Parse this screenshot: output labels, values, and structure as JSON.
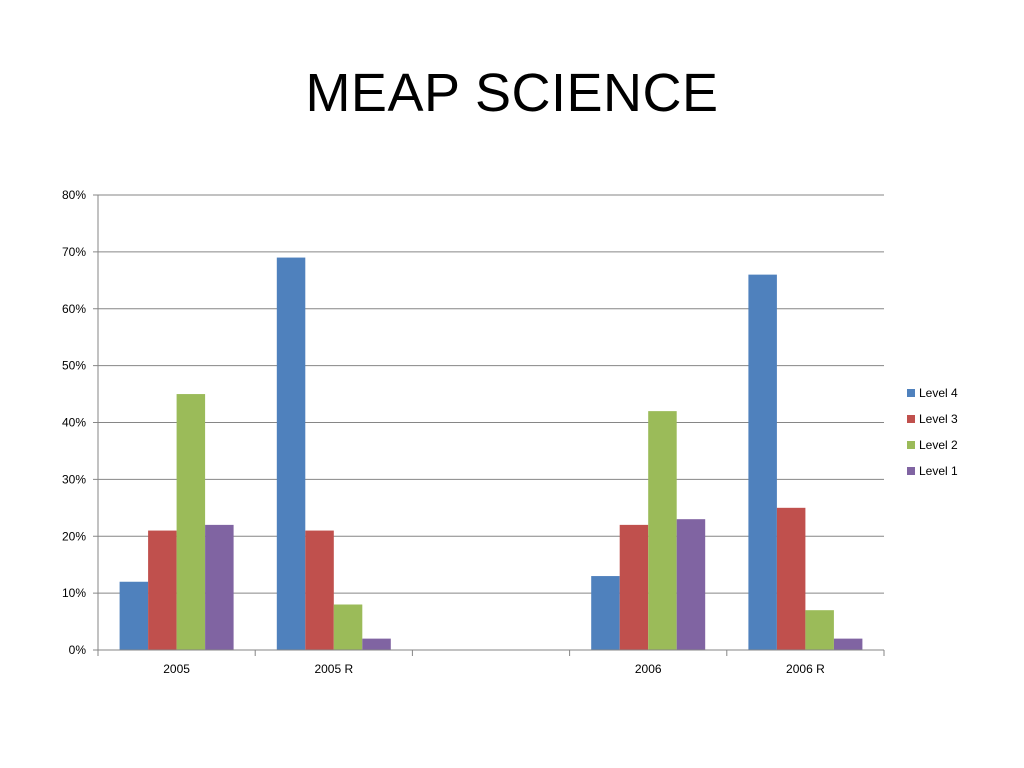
{
  "slide": {
    "title": "MEAP SCIENCE"
  },
  "chart_data": {
    "type": "bar",
    "title": "",
    "xlabel": "",
    "ylabel": "",
    "categories": [
      "2005",
      "2005 R",
      "",
      "2006",
      "2006 R"
    ],
    "series": [
      {
        "name": "Level 4",
        "color": "#4f81bd",
        "values": [
          0.12,
          0.69,
          null,
          0.13,
          0.66
        ]
      },
      {
        "name": "Level 3",
        "color": "#c0504d",
        "values": [
          0.21,
          0.21,
          null,
          0.22,
          0.25
        ]
      },
      {
        "name": "Level 2",
        "color": "#9bbb59",
        "values": [
          0.45,
          0.08,
          null,
          0.42,
          0.07
        ]
      },
      {
        "name": "Level 1",
        "color": "#8064a2",
        "values": [
          0.22,
          0.02,
          null,
          0.23,
          0.02
        ]
      }
    ],
    "ylim": [
      0,
      0.8
    ],
    "yticks": [
      "0%",
      "10%",
      "20%",
      "30%",
      "40%",
      "50%",
      "60%",
      "70%",
      "80%"
    ],
    "grid": true,
    "legend_position": "right"
  }
}
